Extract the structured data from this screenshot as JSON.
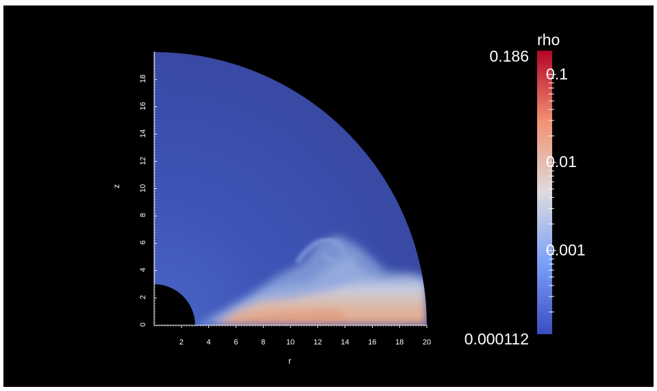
{
  "chart_data": {
    "type": "heatmap",
    "title": "",
    "xlabel": "r",
    "ylabel": "z",
    "x_ticks": [
      2,
      4,
      6,
      8,
      10,
      12,
      14,
      16,
      18,
      20
    ],
    "y_ticks": [
      0,
      2,
      4,
      6,
      8,
      10,
      12,
      14,
      16,
      18
    ],
    "xlim": [
      0,
      20
    ],
    "ylim": [
      0,
      20
    ],
    "domain": "quarter annulus, inner radius 3, outer radius 20",
    "colorbar": {
      "label": "rho",
      "max_label": "0.186",
      "min_label": "0.000112",
      "max": 0.186,
      "min": 0.000112,
      "scale": "log",
      "ticks": [
        "0.1",
        "0.01",
        "0.001"
      ],
      "colormap": "cool-to-warm",
      "colors": [
        "#3b4cc0",
        "#dddddd",
        "#b40426"
      ]
    },
    "background": "#000000"
  }
}
